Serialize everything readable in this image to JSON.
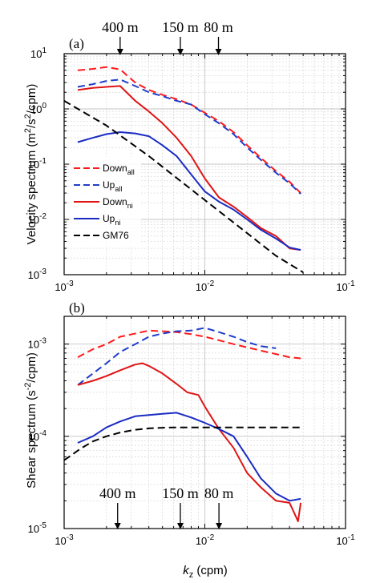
{
  "chart_data": [
    {
      "type": "line",
      "panel_label": "(a)",
      "ylabel_main": "Velocity spectrum (m",
      "ylabel_sup1": "2",
      "ylabel_mid": "/s",
      "ylabel_sup2": "2",
      "ylabel_end": "/cpm)",
      "xscale": "log",
      "yscale": "log",
      "xlim": [
        0.001,
        0.1
      ],
      "ylim": [
        0.001,
        10
      ],
      "grid": true,
      "legend_position": "center-left",
      "xticks": [
        {
          "value": 0.001,
          "base": "10",
          "exp": "-3"
        },
        {
          "value": 0.01,
          "base": "10",
          "exp": "-2"
        },
        {
          "value": 0.1,
          "base": "10",
          "exp": "-1"
        }
      ],
      "yticks": [
        {
          "value": 0.001,
          "base": "10",
          "exp": "-3"
        },
        {
          "value": 0.01,
          "base": "10",
          "exp": "-2"
        },
        {
          "value": 0.1,
          "base": "10",
          "exp": "-1"
        },
        {
          "value": 1,
          "base": "10",
          "exp": "0"
        },
        {
          "value": 10,
          "base": "10",
          "exp": "1"
        }
      ],
      "wavelength_markers": [
        {
          "label": "400 m",
          "x": 0.0025
        },
        {
          "label": "150 m",
          "x": 0.0067
        },
        {
          "label": "80 m",
          "x": 0.0125
        }
      ],
      "series": [
        {
          "name_main": "Down",
          "name_sub": "all",
          "color": "#ff1a1a",
          "dash": "dash",
          "x": [
            0.00125,
            0.0016,
            0.002,
            0.0025,
            0.0032,
            0.004,
            0.005,
            0.0063,
            0.008,
            0.01,
            0.0126,
            0.016,
            0.02,
            0.025,
            0.032,
            0.04,
            0.048
          ],
          "y": [
            5.0,
            5.3,
            5.7,
            5.2,
            3.0,
            2.2,
            1.8,
            1.5,
            1.2,
            0.85,
            0.6,
            0.38,
            0.22,
            0.13,
            0.075,
            0.048,
            0.03
          ]
        },
        {
          "name_main": "Up",
          "name_sub": "all",
          "color": "#1f3dcc",
          "dash": "dash",
          "x": [
            0.00125,
            0.0016,
            0.002,
            0.0025,
            0.0032,
            0.004,
            0.005,
            0.0063,
            0.008,
            0.01,
            0.0126,
            0.016,
            0.02,
            0.025,
            0.032,
            0.04,
            0.048
          ],
          "y": [
            2.5,
            2.8,
            3.2,
            3.4,
            2.6,
            2.0,
            1.7,
            1.4,
            1.2,
            0.8,
            0.55,
            0.35,
            0.2,
            0.12,
            0.07,
            0.045,
            0.029
          ]
        },
        {
          "name_main": "Down",
          "name_sub": "ni",
          "color": "#e01414",
          "dash": "solid",
          "x": [
            0.00125,
            0.0016,
            0.002,
            0.0025,
            0.0032,
            0.004,
            0.005,
            0.0063,
            0.008,
            0.01,
            0.0126,
            0.016,
            0.02,
            0.025,
            0.032,
            0.04,
            0.048
          ],
          "y": [
            2.2,
            2.4,
            2.5,
            2.6,
            1.4,
            0.9,
            0.55,
            0.3,
            0.14,
            0.055,
            0.025,
            0.017,
            0.011,
            0.007,
            0.005,
            0.003,
            0.0028
          ]
        },
        {
          "name_main": "Up",
          "name_sub": "ni",
          "color": "#1a2bc4",
          "dash": "solid",
          "x": [
            0.00125,
            0.0016,
            0.002,
            0.0025,
            0.0032,
            0.004,
            0.005,
            0.0063,
            0.008,
            0.01,
            0.0126,
            0.016,
            0.02,
            0.025,
            0.032,
            0.04,
            0.048
          ],
          "y": [
            0.25,
            0.3,
            0.35,
            0.38,
            0.36,
            0.32,
            0.22,
            0.14,
            0.065,
            0.032,
            0.021,
            0.015,
            0.01,
            0.0065,
            0.0045,
            0.0031,
            0.0028
          ]
        },
        {
          "name_main": "GM76",
          "name_sub": "",
          "color": "#000000",
          "dash": "dash",
          "x": [
            0.001,
            0.002,
            0.004,
            0.008,
            0.016,
            0.032,
            0.05
          ],
          "y": [
            1.4,
            0.5,
            0.14,
            0.035,
            0.0088,
            0.0022,
            0.0011
          ]
        }
      ]
    },
    {
      "type": "line",
      "panel_label": "(b)",
      "ylabel_main": "Shear spectrum (s",
      "ylabel_sup1": "-2",
      "ylabel_end": "/cpm)",
      "xlabel_italic": "k",
      "xlabel_sub": "z",
      "xlabel_rest": " (cpm)",
      "xscale": "log",
      "yscale": "log",
      "xlim": [
        0.001,
        0.1
      ],
      "ylim": [
        1e-05,
        0.002
      ],
      "grid": true,
      "xticks": [
        {
          "value": 0.001,
          "base": "10",
          "exp": "-3"
        },
        {
          "value": 0.01,
          "base": "10",
          "exp": "-2"
        },
        {
          "value": 0.1,
          "base": "10",
          "exp": "-1"
        }
      ],
      "yticks": [
        {
          "value": 1e-05,
          "base": "10",
          "exp": "-5"
        },
        {
          "value": 0.0001,
          "base": "10",
          "exp": "-4"
        },
        {
          "value": 0.001,
          "base": "10",
          "exp": "-3"
        }
      ],
      "wavelength_markers": [
        {
          "label": "400 m",
          "x": 0.0024
        },
        {
          "label": "150 m",
          "x": 0.0067
        },
        {
          "label": "80 m",
          "x": 0.0126
        }
      ],
      "series": [
        {
          "name_main": "Down",
          "name_sub": "all",
          "color": "#ff1a1a",
          "dash": "dash",
          "x": [
            0.00125,
            0.0016,
            0.002,
            0.0025,
            0.0032,
            0.004,
            0.005,
            0.0063,
            0.008,
            0.01,
            0.0126,
            0.016,
            0.02,
            0.025,
            0.032,
            0.04,
            0.048
          ],
          "y": [
            0.00072,
            0.00088,
            0.001,
            0.0012,
            0.0013,
            0.0014,
            0.00138,
            0.00135,
            0.00128,
            0.0012,
            0.0011,
            0.001,
            0.00092,
            0.00085,
            0.00078,
            0.00072,
            0.0007
          ]
        },
        {
          "name_main": "Up",
          "name_sub": "all",
          "color": "#1f3dcc",
          "dash": "dash",
          "x": [
            0.00125,
            0.0016,
            0.002,
            0.0025,
            0.0032,
            0.004,
            0.005,
            0.0063,
            0.008,
            0.01,
            0.0126,
            0.016,
            0.02,
            0.025,
            0.032
          ],
          "y": [
            0.00036,
            0.00048,
            0.00062,
            0.00082,
            0.001,
            0.0012,
            0.0013,
            0.00138,
            0.0014,
            0.0015,
            0.00135,
            0.0012,
            0.00105,
            0.00095,
            0.0009
          ]
        },
        {
          "name_main": "Down",
          "name_sub": "ni",
          "color": "#e01414",
          "dash": "solid",
          "x": [
            0.00125,
            0.0016,
            0.002,
            0.0025,
            0.0032,
            0.0036,
            0.004,
            0.005,
            0.0063,
            0.0075,
            0.009,
            0.01,
            0.0126,
            0.016,
            0.02,
            0.025,
            0.032,
            0.04,
            0.046,
            0.048
          ],
          "y": [
            0.00036,
            0.0004,
            0.00045,
            0.00052,
            0.0006,
            0.00062,
            0.00058,
            0.00048,
            0.00037,
            0.0003,
            0.00028,
            0.00021,
            0.00012,
            7.5e-05,
            4e-05,
            2.8e-05,
            2e-05,
            1.9e-05,
            1.2e-05,
            1.9e-05
          ]
        },
        {
          "name_main": "Up",
          "name_sub": "ni",
          "color": "#1a2bc4",
          "dash": "solid",
          "x": [
            0.00125,
            0.0016,
            0.002,
            0.0025,
            0.0032,
            0.004,
            0.005,
            0.0063,
            0.008,
            0.01,
            0.0126,
            0.016,
            0.02,
            0.025,
            0.032,
            0.04,
            0.048
          ],
          "y": [
            8.5e-05,
            0.0001,
            0.000125,
            0.000145,
            0.000165,
            0.00017,
            0.000175,
            0.00018,
            0.00016,
            0.00014,
            0.00012,
            0.0001,
            6e-05,
            3.5e-05,
            2.4e-05,
            2e-05,
            2.1e-05
          ]
        },
        {
          "name_main": "GM76",
          "name_sub": "",
          "color": "#000000",
          "dash": "dash",
          "x": [
            0.001,
            0.0013,
            0.0016,
            0.002,
            0.0025,
            0.0032,
            0.004,
            0.005,
            0.0063,
            0.008,
            0.01,
            0.02,
            0.03,
            0.048
          ],
          "y": [
            5.5e-05,
            7.3e-05,
            8.8e-05,
            0.0001,
            0.00011,
            0.000118,
            0.000122,
            0.000124,
            0.000125,
            0.000125,
            0.000125,
            0.000125,
            0.000125,
            0.000125
          ]
        }
      ]
    }
  ]
}
